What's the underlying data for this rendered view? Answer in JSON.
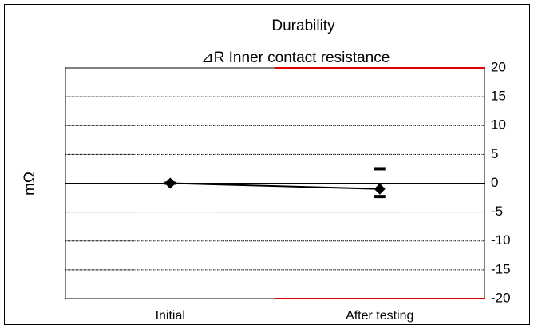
{
  "chart_data": {
    "type": "line",
    "title": "Durability",
    "subtitle": "⊿R Inner contact resistance",
    "ylabel": "mΩ",
    "categories": [
      "Initial",
      "After testing"
    ],
    "values": [
      0,
      -1
    ],
    "max_values": [
      0,
      2.5
    ],
    "min_values": [
      0,
      -2.3
    ],
    "color": "#000000",
    "limits": [
      20,
      -20
    ],
    "limit_color": "#e00000",
    "ylim": [
      -20,
      20
    ],
    "yticks": [
      20,
      15,
      10,
      5,
      0,
      -5,
      -10,
      -15,
      -20
    ],
    "grid": true
  }
}
